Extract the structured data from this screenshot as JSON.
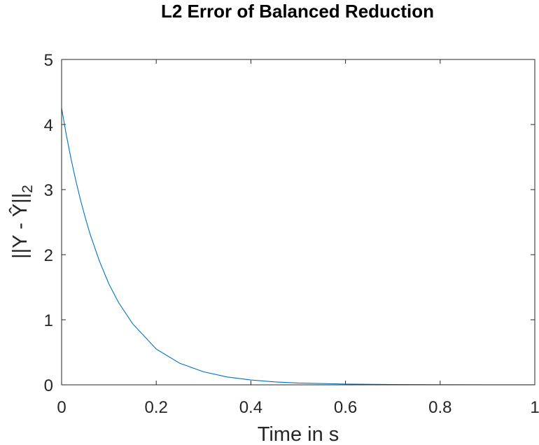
{
  "chart_data": {
    "type": "line",
    "title": "L2 Error of Balanced Reduction",
    "xlabel": "Time in s",
    "ylabel": {
      "main": "||Y - Ŷ||",
      "subscript": "2"
    },
    "xlim": [
      0,
      1
    ],
    "ylim": [
      0,
      5
    ],
    "xticks": [
      0,
      0.2,
      0.4,
      0.6,
      0.8,
      1
    ],
    "xtick_labels": [
      "0",
      "0.2",
      "0.4",
      "0.6",
      "0.8",
      "1"
    ],
    "yticks": [
      0,
      1,
      2,
      3,
      4,
      5
    ],
    "ytick_labels": [
      "0",
      "1",
      "2",
      "3",
      "4",
      "5"
    ],
    "grid": false,
    "series": [
      {
        "color": "#0072BD",
        "x": [
          0,
          0.01,
          0.02,
          0.03,
          0.04,
          0.05,
          0.06,
          0.08,
          0.1,
          0.12,
          0.15,
          0.2,
          0.25,
          0.3,
          0.35,
          0.4,
          0.45,
          0.5,
          0.6,
          0.7,
          0.8,
          0.9,
          1.0
        ],
        "y": [
          4.25,
          3.84,
          3.47,
          3.14,
          2.84,
          2.57,
          2.32,
          1.9,
          1.55,
          1.27,
          0.94,
          0.55,
          0.33,
          0.2,
          0.12,
          0.075,
          0.045,
          0.028,
          0.012,
          0.005,
          0.002,
          0.001,
          0.0005
        ]
      }
    ]
  }
}
